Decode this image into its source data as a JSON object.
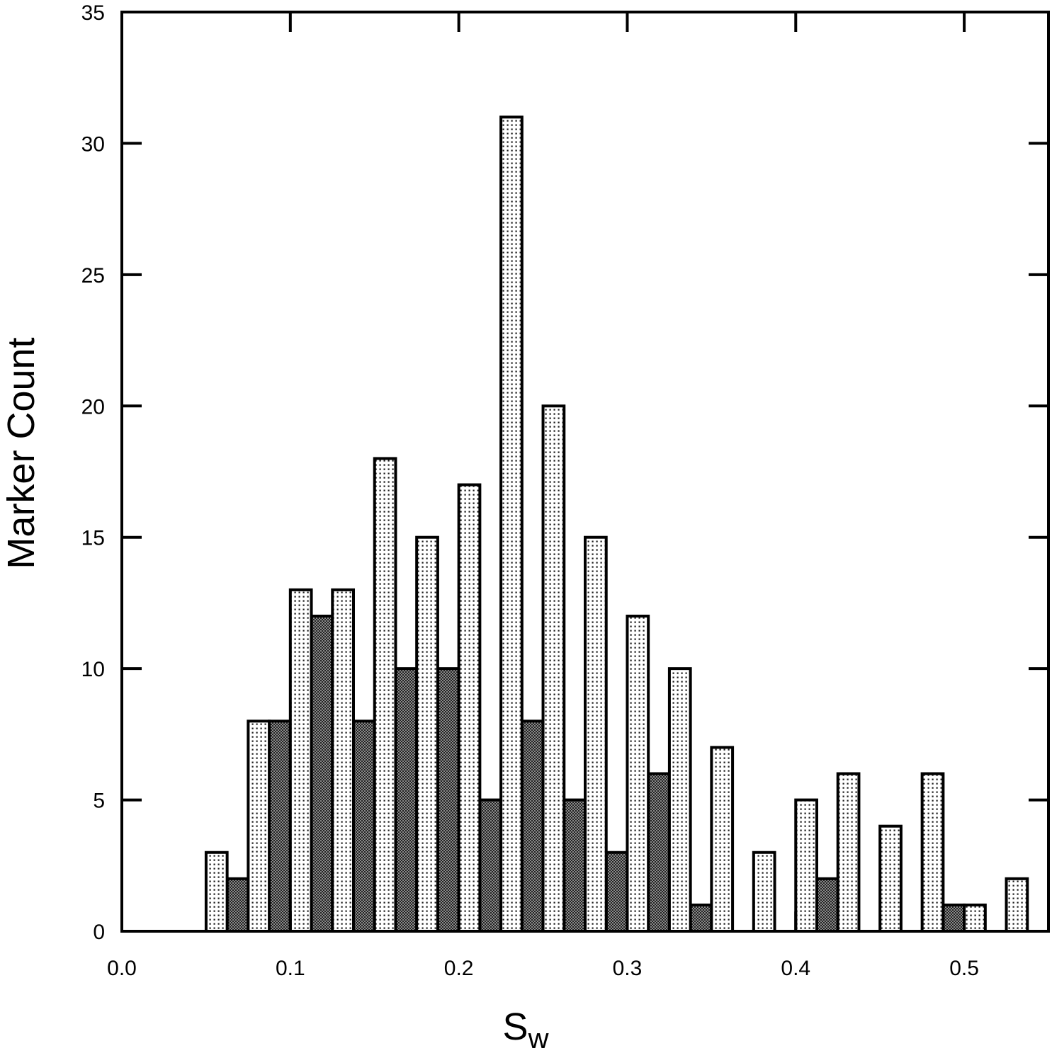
{
  "chart_data": {
    "type": "bar",
    "xlabel": "S",
    "xlabel_sub": "w",
    "ylabel": "Marker Count",
    "xlim": [
      0.0,
      0.55
    ],
    "ylim": [
      0,
      35
    ],
    "bin_width": 0.0125,
    "x_ticks": [
      "0.0",
      "0.1",
      "0.2",
      "0.3",
      "0.4",
      "0.5"
    ],
    "x_tick_values": [
      0.0,
      0.1,
      0.2,
      0.3,
      0.4,
      0.5
    ],
    "y_ticks": [
      "0",
      "5",
      "10",
      "15",
      "20",
      "25",
      "30",
      "35"
    ],
    "y_tick_values": [
      0,
      5,
      10,
      15,
      20,
      25,
      30,
      35
    ],
    "grid": false,
    "series": [
      {
        "pattern": "light-dotted",
        "bars": [
          {
            "x": 0.05,
            "value": 3
          },
          {
            "x": 0.075,
            "value": 8
          },
          {
            "x": 0.1,
            "value": 13
          },
          {
            "x": 0.125,
            "value": 13
          },
          {
            "x": 0.15,
            "value": 18
          },
          {
            "x": 0.175,
            "value": 15
          },
          {
            "x": 0.2,
            "value": 17
          },
          {
            "x": 0.225,
            "value": 31
          },
          {
            "x": 0.25,
            "value": 20
          },
          {
            "x": 0.275,
            "value": 15
          },
          {
            "x": 0.3,
            "value": 12
          },
          {
            "x": 0.325,
            "value": 10
          },
          {
            "x": 0.35,
            "value": 7
          },
          {
            "x": 0.375,
            "value": 3
          },
          {
            "x": 0.4,
            "value": 5
          },
          {
            "x": 0.425,
            "value": 6
          },
          {
            "x": 0.45,
            "value": 4
          },
          {
            "x": 0.475,
            "value": 6
          },
          {
            "x": 0.5,
            "value": 1
          },
          {
            "x": 0.525,
            "value": 2
          }
        ]
      },
      {
        "pattern": "dark-crosshatch",
        "bars": [
          {
            "x": 0.0625,
            "value": 2
          },
          {
            "x": 0.0875,
            "value": 8
          },
          {
            "x": 0.1125,
            "value": 12
          },
          {
            "x": 0.1375,
            "value": 8
          },
          {
            "x": 0.1625,
            "value": 10
          },
          {
            "x": 0.1875,
            "value": 10
          },
          {
            "x": 0.2125,
            "value": 5
          },
          {
            "x": 0.2375,
            "value": 8
          },
          {
            "x": 0.2625,
            "value": 5
          },
          {
            "x": 0.2875,
            "value": 3
          },
          {
            "x": 0.3125,
            "value": 6
          },
          {
            "x": 0.3375,
            "value": 1
          },
          {
            "x": 0.3625,
            "value": 0
          },
          {
            "x": 0.3875,
            "value": 0
          },
          {
            "x": 0.4125,
            "value": 2
          },
          {
            "x": 0.4375,
            "value": 0
          },
          {
            "x": 0.4625,
            "value": 0
          },
          {
            "x": 0.4875,
            "value": 1
          },
          {
            "x": 0.5125,
            "value": 0
          }
        ]
      }
    ]
  }
}
